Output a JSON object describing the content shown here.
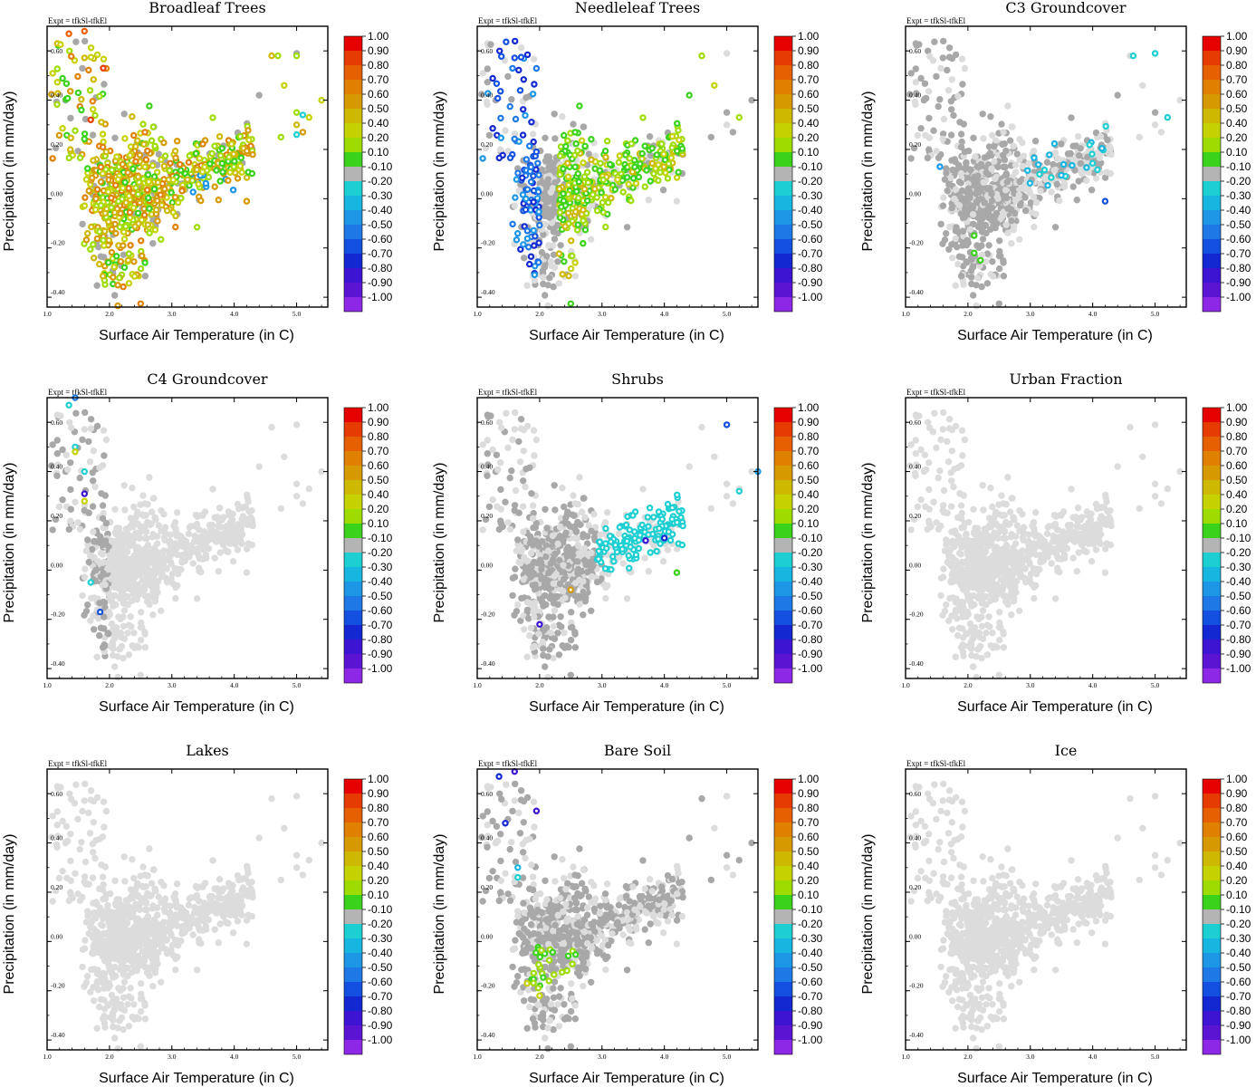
{
  "figure": {
    "experiment_label": "Expt = tfkSl-tfkEl",
    "xlabel": "Surface Air Temperature (in C)",
    "ylabel": "Precipitation (in mm/day)",
    "x_ticks": [
      "1.0",
      "2.0",
      "3.0",
      "4.0",
      "5.0"
    ],
    "y_ticks": [
      "0.60",
      "0.40",
      "0.20",
      "0.00",
      "-0.20",
      "-0.40"
    ],
    "colorbar_labels": [
      "1.00",
      "0.90",
      "0.80",
      "0.70",
      "0.60",
      "0.50",
      "0.40",
      "0.20",
      "0.10",
      "-0.10",
      "-0.20",
      "-0.30",
      "-0.40",
      "-0.50",
      "-0.60",
      "-0.70",
      "-0.80",
      "-0.90",
      "-1.00"
    ],
    "colorbar_colors": [
      "#e60000",
      "#e63c00",
      "#e65f00",
      "#e08000",
      "#d69a00",
      "#cfb800",
      "#c6d200",
      "#9edc00",
      "#3ad21a",
      "#b4b4b4",
      "#1ecfd2",
      "#16b6e0",
      "#1e96e6",
      "#1e78e6",
      "#1450e0",
      "#1428d2",
      "#3c14d2",
      "#5a14d2",
      "#8c28e6"
    ],
    "neutral_color_strong": "#a8a8a8",
    "neutral_color_light": "#dcdcdc"
  },
  "chart_data": [
    {
      "type": "scatter",
      "title": "Broadleaf Trees",
      "xlabel": "Surface Air Temperature (in C)",
      "ylabel": "Precipitation (in mm/day)",
      "xlim": [
        1.0,
        5.5
      ],
      "ylim": [
        -0.44,
        0.7
      ],
      "colorbar_range": [
        -1.0,
        1.0
      ],
      "colored_pattern": "warm",
      "note": "Mostly positive correlations (0.1-0.8) across the point cloud"
    },
    {
      "type": "scatter",
      "title": "Needleleaf Trees",
      "xlabel": "Surface Air Temperature (in C)",
      "ylabel": "Precipitation (in mm/day)",
      "xlim": [
        1.0,
        5.5
      ],
      "ylim": [
        -0.44,
        0.7
      ],
      "colorbar_range": [
        -1.0,
        1.0
      ],
      "colored_pattern": "mixed",
      "note": "Negative (blue) at cool/left side, positive (green-yellow) in warmer region"
    },
    {
      "type": "scatter",
      "title": "C3 Groundcover",
      "xlabel": "Surface Air Temperature (in C)",
      "ylabel": "Precipitation (in mm/day)",
      "xlim": [
        1.0,
        5.5
      ],
      "ylim": [
        -0.44,
        0.7
      ],
      "colorbar_range": [
        -1.0,
        1.0
      ],
      "colored_pattern": "cyan",
      "note": "Sparse cyan points, mostly neutral grey"
    },
    {
      "type": "scatter",
      "title": "C4 Groundcover",
      "xlabel": "Surface Air Temperature (in C)",
      "ylabel": "Precipitation (in mm/day)",
      "xlim": [
        1.0,
        5.5
      ],
      "ylim": [
        -0.44,
        0.7
      ],
      "colorbar_range": [
        -1.0,
        1.0
      ],
      "colored_pattern": "sparse",
      "note": "Few coloured points near x=1.4-1.9"
    },
    {
      "type": "scatter",
      "title": "Shrubs",
      "xlabel": "Surface Air Temperature (in C)",
      "ylabel": "Precipitation (in mm/day)",
      "xlim": [
        1.0,
        5.5
      ],
      "ylim": [
        -0.44,
        0.7
      ],
      "colorbar_range": [
        -1.0,
        1.0
      ],
      "colored_pattern": "cyanband",
      "note": "Cyan negative correlations along warm band 3.0-4.2"
    },
    {
      "type": "scatter",
      "title": "Urban Fraction",
      "xlabel": "Surface Air Temperature (in C)",
      "ylabel": "Precipitation (in mm/day)",
      "xlim": [
        1.0,
        5.5
      ],
      "ylim": [
        -0.44,
        0.7
      ],
      "colorbar_range": [
        -1.0,
        1.0
      ],
      "colored_pattern": "none",
      "note": "No significant points"
    },
    {
      "type": "scatter",
      "title": "Lakes",
      "xlabel": "Surface Air Temperature (in C)",
      "ylabel": "Precipitation (in mm/day)",
      "xlim": [
        1.0,
        5.5
      ],
      "ylim": [
        -0.44,
        0.7
      ],
      "colorbar_range": [
        -1.0,
        1.0
      ],
      "colored_pattern": "none",
      "note": "No significant points"
    },
    {
      "type": "scatter",
      "title": "Bare Soil",
      "xlabel": "Surface Air Temperature (in C)",
      "ylabel": "Precipitation (in mm/day)",
      "xlim": [
        1.0,
        5.5
      ],
      "ylim": [
        -0.44,
        0.7
      ],
      "colorbar_range": [
        -1.0,
        1.0
      ],
      "colored_pattern": "baresoil",
      "note": "Green points near (2.0,-0.1); purple points at top-left"
    },
    {
      "type": "scatter",
      "title": "Ice",
      "xlabel": "Surface Air Temperature (in C)",
      "ylabel": "Precipitation (in mm/day)",
      "xlim": [
        1.0,
        5.5
      ],
      "ylim": [
        -0.44,
        0.7
      ],
      "colorbar_range": [
        -1.0,
        1.0
      ],
      "colored_pattern": "none",
      "note": "No significant points"
    }
  ]
}
